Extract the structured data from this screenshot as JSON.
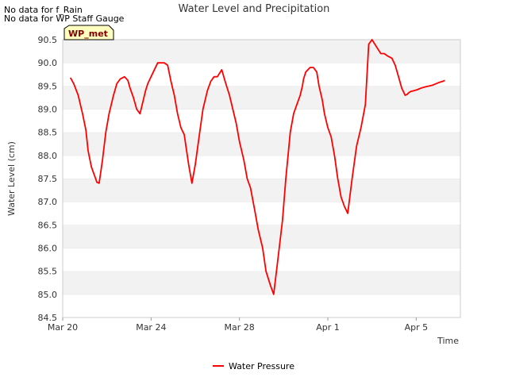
{
  "notes": {
    "line1": "No data for f_Rain",
    "line2": "No data for WP Staff Gauge"
  },
  "badge": {
    "label": "WP_met",
    "fill": "#ffffc0",
    "text_color": "#800000"
  },
  "chart_data": {
    "type": "line",
    "title": "Water Level and Precipitation",
    "xlabel": "Time",
    "ylabel": "Water Level (cm)",
    "ylim": [
      84.5,
      90.5
    ],
    "xlim_days": [
      0,
      18
    ],
    "y_ticks": [
      84.5,
      85.0,
      85.5,
      86.0,
      86.5,
      87.0,
      87.5,
      88.0,
      88.5,
      89.0,
      89.5,
      90.0,
      90.5
    ],
    "y_tick_labels": [
      "84.5",
      "85.0",
      "85.5",
      "86.0",
      "86.5",
      "87.0",
      "87.5",
      "88.0",
      "88.5",
      "89.0",
      "89.5",
      "90.0",
      "90.5"
    ],
    "x_ticks": [
      {
        "day": 0,
        "label": "Mar 20"
      },
      {
        "day": 4,
        "label": "Mar 24"
      },
      {
        "day": 8,
        "label": "Mar 28"
      },
      {
        "day": 12,
        "label": "Apr 1"
      },
      {
        "day": 16,
        "label": "Apr 5"
      }
    ],
    "grid": true,
    "band_colors": [
      "#f2f2f2",
      "#ffffff"
    ],
    "legend_position": "bottom-center",
    "series": [
      {
        "name": "Water Pressure",
        "color": "#ff0000",
        "x": [
          0.35,
          0.5,
          0.7,
          0.9,
          1.05,
          1.15,
          1.3,
          1.45,
          1.55,
          1.65,
          1.65,
          1.8,
          1.95,
          2.1,
          2.3,
          2.45,
          2.6,
          2.8,
          2.95,
          3.05,
          3.2,
          3.35,
          3.5,
          3.65,
          3.75,
          3.85,
          3.95,
          4.1,
          4.3,
          4.45,
          4.6,
          4.75,
          4.9,
          5.05,
          5.2,
          5.35,
          5.5,
          5.7,
          5.85,
          6.0,
          6.2,
          6.35,
          6.45,
          6.55,
          6.7,
          6.85,
          7.0,
          7.2,
          7.35,
          7.55,
          7.7,
          7.85,
          8.0,
          8.2,
          8.35,
          8.5,
          8.7,
          8.85,
          9.05,
          9.2,
          9.4,
          9.55,
          9.75,
          9.95,
          10.1,
          10.3,
          10.45,
          10.6,
          10.75,
          10.85,
          10.9,
          11.0,
          11.1,
          11.2,
          11.35,
          11.5,
          11.6,
          11.75,
          11.85,
          12.0,
          12.15,
          12.3,
          12.45,
          12.6,
          12.75,
          12.9,
          13.1,
          13.3,
          13.5,
          13.7,
          13.85,
          14.0,
          14.2,
          14.4,
          14.55,
          14.7,
          14.9,
          15.05,
          15.2,
          15.35,
          15.5,
          15.6,
          15.65,
          15.75,
          15.9,
          16.05,
          16.2,
          16.4,
          16.6,
          16.75,
          16.9,
          17.05,
          17.2,
          17.3
        ],
        "y": [
          89.68,
          89.55,
          89.3,
          88.9,
          88.55,
          88.1,
          87.75,
          87.55,
          87.42,
          87.4,
          87.4,
          87.9,
          88.5,
          88.9,
          89.3,
          89.55,
          89.65,
          89.7,
          89.62,
          89.45,
          89.25,
          89.0,
          88.9,
          89.2,
          89.4,
          89.55,
          89.65,
          89.8,
          90.0,
          90.0,
          90.0,
          89.95,
          89.6,
          89.3,
          88.9,
          88.6,
          88.45,
          87.8,
          87.4,
          87.8,
          88.5,
          89.0,
          89.2,
          89.4,
          89.6,
          89.7,
          89.7,
          89.85,
          89.6,
          89.3,
          89.0,
          88.7,
          88.3,
          87.9,
          87.5,
          87.3,
          86.8,
          86.4,
          86.0,
          85.5,
          85.2,
          85.0,
          85.8,
          86.6,
          87.5,
          88.5,
          88.9,
          89.1,
          89.3,
          89.5,
          89.65,
          89.8,
          89.85,
          89.9,
          89.9,
          89.8,
          89.5,
          89.2,
          88.9,
          88.6,
          88.4,
          88.0,
          87.5,
          87.1,
          86.9,
          86.75,
          87.5,
          88.2,
          88.6,
          89.1,
          90.4,
          90.5,
          90.35,
          90.2,
          90.2,
          90.15,
          90.1,
          89.95,
          89.7,
          89.45,
          89.3,
          89.32,
          89.35,
          89.38,
          89.4,
          89.42,
          89.45,
          89.48,
          89.5,
          89.52,
          89.55,
          89.58,
          89.6,
          89.62
        ]
      }
    ]
  }
}
